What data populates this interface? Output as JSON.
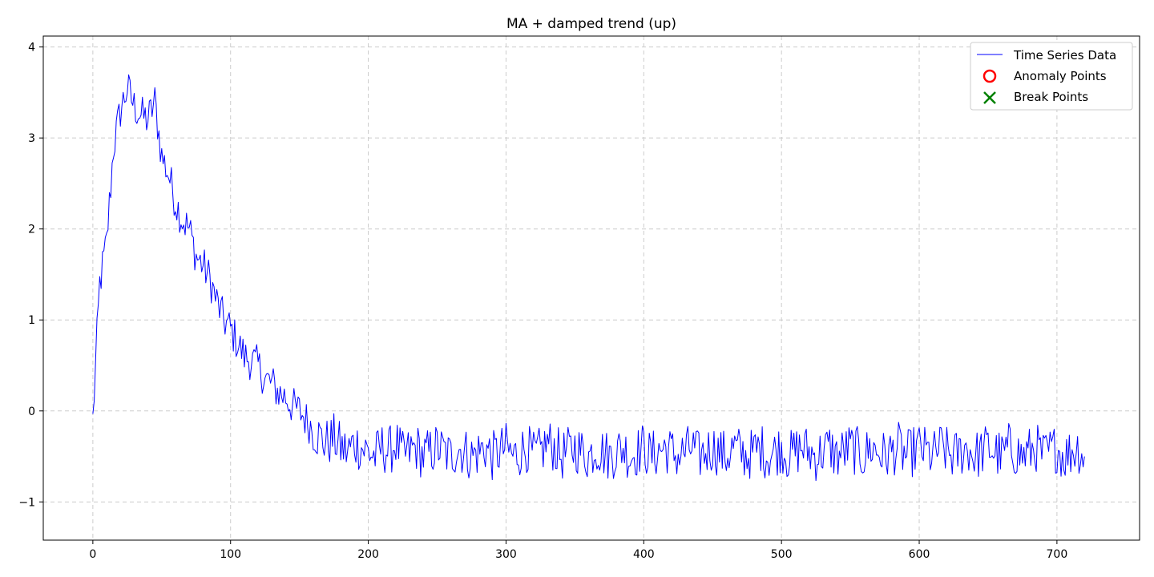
{
  "chart_data": {
    "type": "line",
    "title": "MA + damped trend (up)",
    "xlabel": "",
    "ylabel": "",
    "xlim": [
      -36,
      760
    ],
    "ylim": [
      -1.42,
      4.12
    ],
    "x_ticks": [
      0,
      100,
      200,
      300,
      400,
      500,
      600,
      700
    ],
    "y_ticks": [
      -1,
      0,
      1,
      2,
      3,
      4
    ],
    "x_tick_labels": [
      "0",
      "100",
      "200",
      "300",
      "400",
      "500",
      "600",
      "700"
    ],
    "y_tick_labels": [
      "−1",
      "0",
      "1",
      "2",
      "3",
      "4"
    ],
    "grid": true,
    "legend_position": "top-right",
    "legend": [
      "Time Series Data",
      "Anomaly Points",
      "Break Points"
    ],
    "series": [
      {
        "name": "Time Series Data",
        "color": "#0000ff",
        "x_start": 0,
        "x_step": 5,
        "values": [
          -0.1,
          1.4,
          1.85,
          2.9,
          3.3,
          3.55,
          3.35,
          3.25,
          3.2,
          3.4,
          2.8,
          2.6,
          2.3,
          2.1,
          2.0,
          1.7,
          1.6,
          1.45,
          1.2,
          1.0,
          0.9,
          0.75,
          0.6,
          0.55,
          0.5,
          0.35,
          0.3,
          0.2,
          0.15,
          0.05,
          0.0,
          -0.1,
          -0.2,
          -0.3,
          -0.35,
          -0.3,
          -0.4,
          -0.45,
          -0.35,
          -0.4,
          -0.45,
          -0.5,
          -0.4,
          -0.45,
          -0.35,
          -0.5,
          -0.45,
          -0.4,
          -0.5,
          -0.45,
          -0.4,
          -0.45,
          -0.5,
          -0.4,
          -0.45,
          -0.5,
          -0.45,
          -0.4,
          -0.5,
          -0.45,
          -0.4,
          -0.5,
          -0.45,
          -0.4,
          -0.5,
          -0.45,
          -0.35,
          -0.4,
          -0.5,
          -0.45,
          -0.4,
          -0.45,
          -0.5,
          -0.4,
          -0.45,
          -0.5,
          -0.45,
          -0.4,
          -0.5,
          -0.45,
          -0.4,
          -0.5,
          -0.45,
          -0.4,
          -0.45,
          -0.5,
          -0.45,
          -0.4,
          -0.5,
          -0.45,
          -0.4,
          -0.45,
          -0.5,
          -0.4,
          -0.45,
          -0.5,
          -0.45,
          -0.4,
          -0.5,
          -0.45,
          -0.4,
          -0.5,
          -0.45,
          -0.4,
          -0.45,
          -0.5,
          -0.45,
          -0.4,
          -0.5,
          -0.45,
          -0.4,
          -0.45,
          -0.5,
          -0.4,
          -0.45,
          -0.5,
          -0.45,
          -0.4,
          -0.5,
          -0.45,
          -0.4,
          -0.45,
          -0.5,
          -0.4,
          -0.45,
          -0.5,
          -0.45,
          -0.4,
          -0.5,
          -0.45,
          -0.4,
          -0.45,
          -0.5,
          -0.4,
          -0.45,
          -0.5,
          -0.45,
          -0.4,
          -0.5,
          -0.45,
          -0.4,
          -0.5,
          -0.45,
          -0.4,
          -0.5
        ]
      }
    ]
  },
  "anomaly_color": "#ff0000",
  "break_color": "#008000",
  "axis_color": "#000000",
  "grid_color": "#cccccc"
}
